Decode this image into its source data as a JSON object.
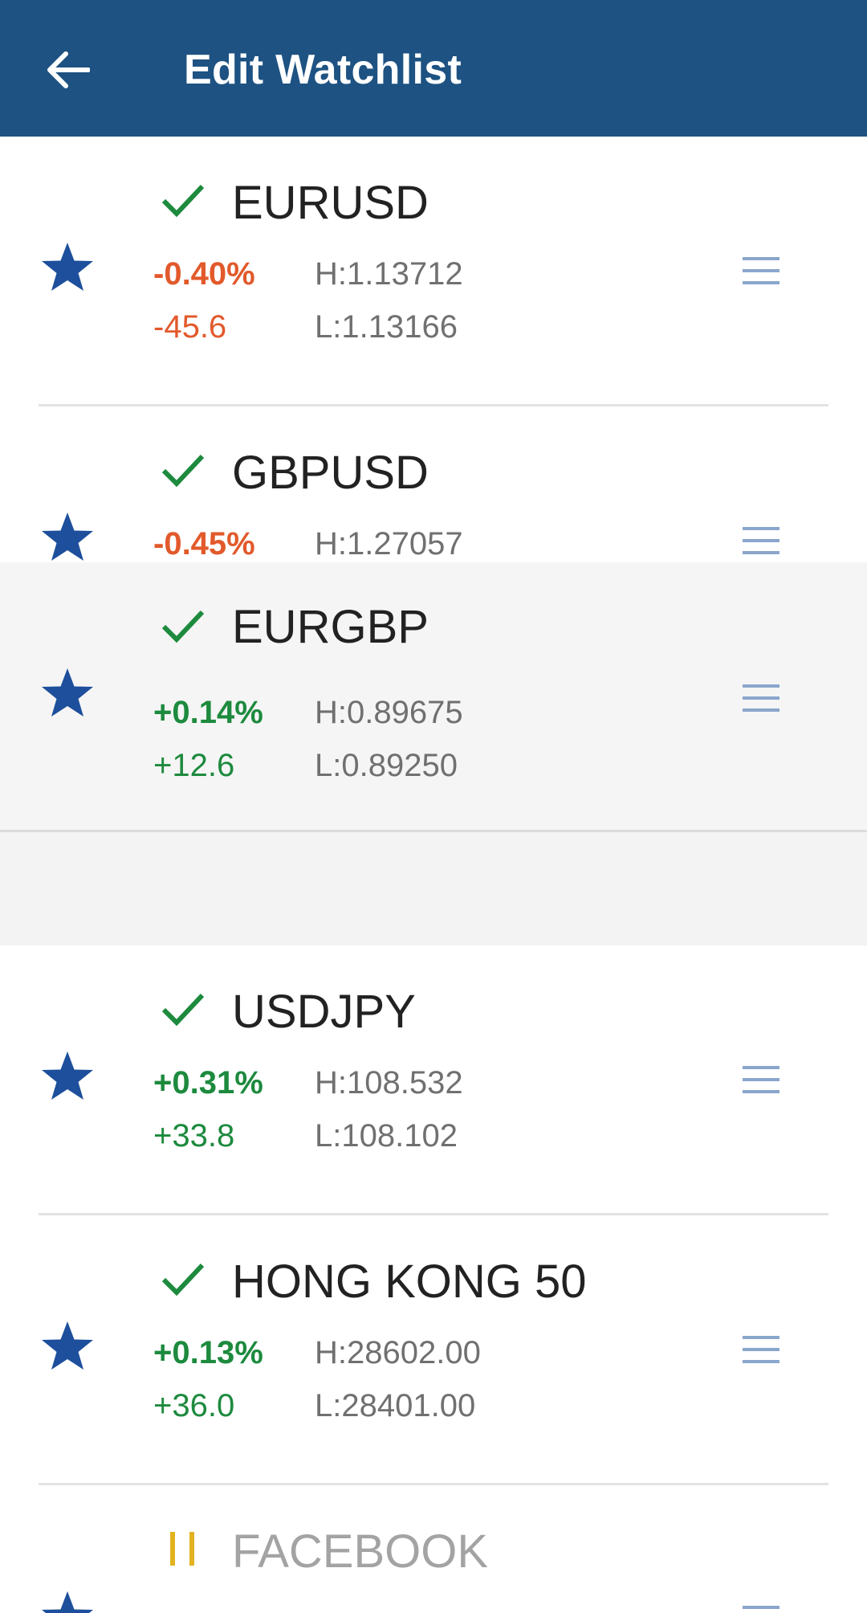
{
  "header": {
    "title": "Edit Watchlist",
    "back_icon": "arrow-back-icon",
    "background": "#1d5282"
  },
  "colors": {
    "negative": "#e2592b",
    "positive": "#1d8a3e",
    "star": "#1d4f9c",
    "handle": "#8aa6cc",
    "paused": "#e2b320"
  },
  "rows": [
    {
      "symbol": "EURUSD",
      "status": "check",
      "pct": "-0.40%",
      "change": "-45.6",
      "high": "H:1.13712",
      "low": "L:1.13166"
    },
    {
      "symbol": "GBPUSD",
      "status": "check",
      "pct": "-0.45%",
      "change": "",
      "high": "H:1.27057",
      "low": ""
    },
    {
      "symbol": "EURGBP",
      "status": "check",
      "pct": "+0.14%",
      "change": "+12.6",
      "high": "H:0.89675",
      "low": "L:0.89250"
    },
    {
      "symbol": "USDJPY",
      "status": "check",
      "pct": "+0.31%",
      "change": "+33.8",
      "high": "H:108.532",
      "low": "L:108.102"
    },
    {
      "symbol": "HONG KONG 50",
      "status": "check",
      "pct": "+0.13%",
      "change": "+36.0",
      "high": "H:28602.00",
      "low": "L:28401.00"
    },
    {
      "symbol": "FACEBOOK",
      "status": "paused",
      "pct": "",
      "change": "",
      "high": "",
      "low": ""
    }
  ]
}
